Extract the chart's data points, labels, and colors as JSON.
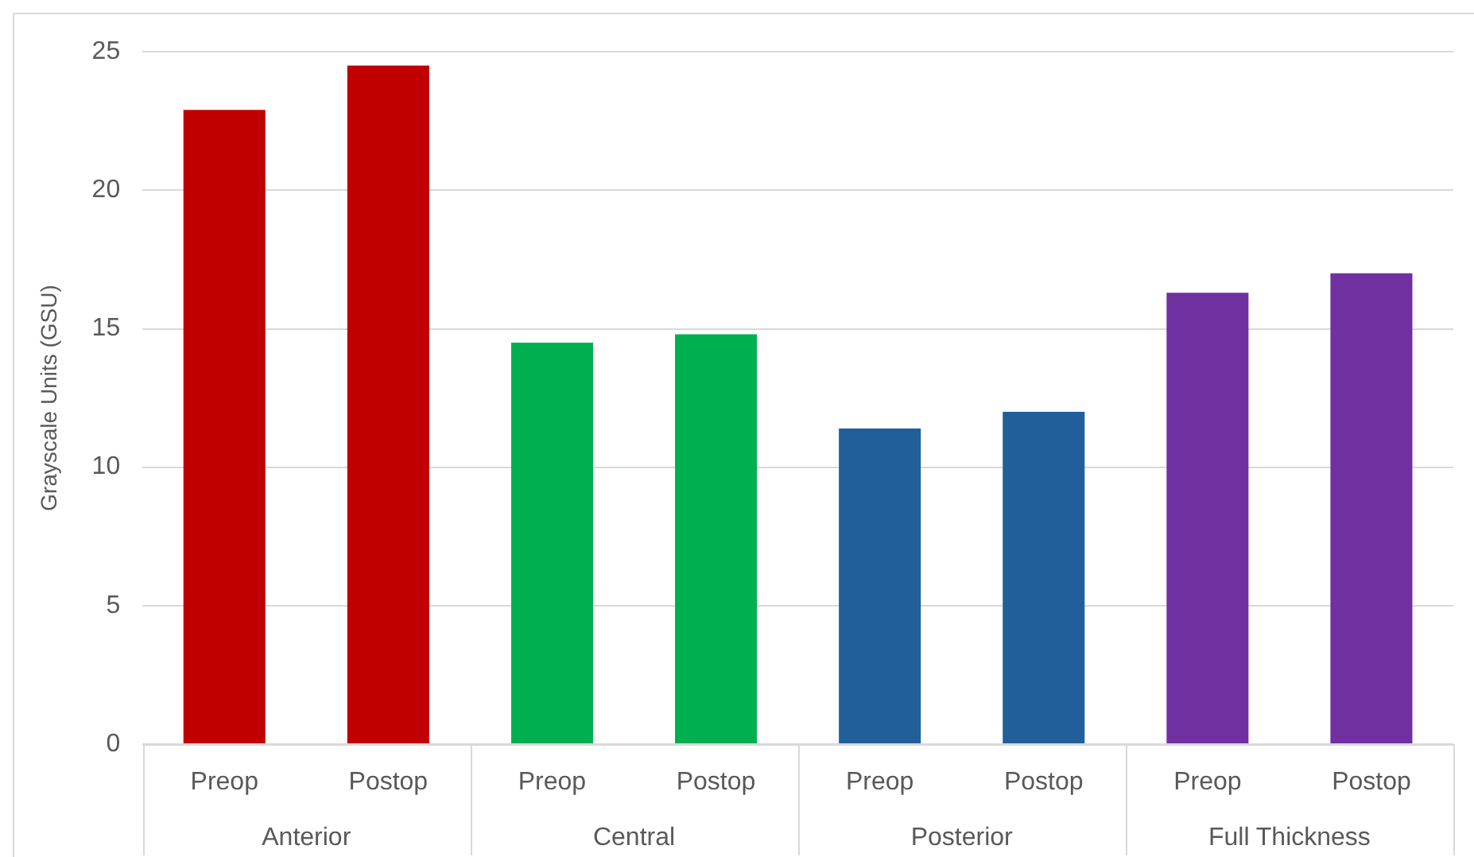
{
  "chart_data": {
    "type": "bar",
    "ylabel": "Grayscale Units (GSU)",
    "categories": [
      "Anterior",
      "Central",
      "Posterior",
      "Full Thickness"
    ],
    "series": [
      {
        "name": "Preop",
        "colors": [
          "#c00000",
          "#00b050",
          "#215f9a",
          "#7030a0"
        ],
        "values": [
          22.9,
          14.5,
          11.4,
          16.3
        ]
      },
      {
        "name": "Postop",
        "colors": [
          "#c00000",
          "#00b050",
          "#215f9a",
          "#7030a0"
        ],
        "values": [
          24.5,
          14.8,
          12.0,
          17.0
        ]
      }
    ],
    "ylim": [
      0,
      25
    ],
    "yticks": [
      0,
      5,
      10,
      15,
      20,
      25
    ],
    "grid": "y",
    "legend": false
  }
}
